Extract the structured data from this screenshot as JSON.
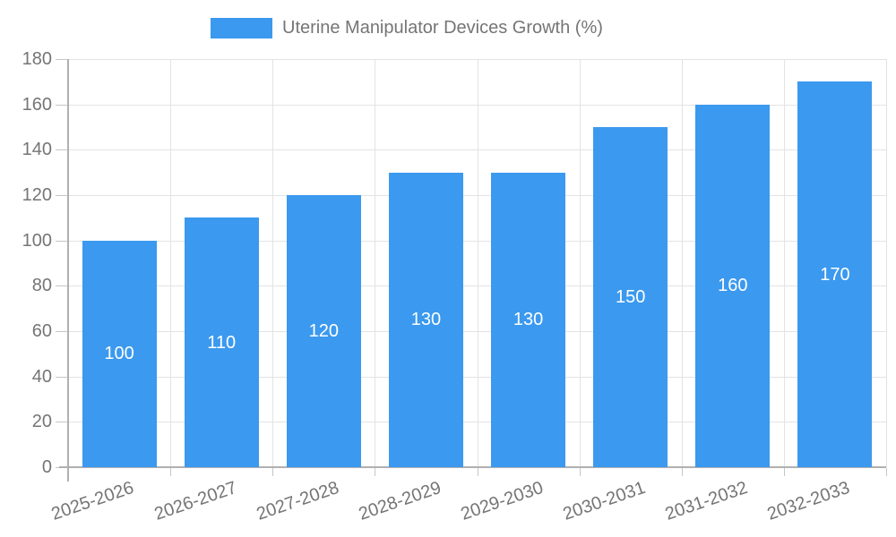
{
  "chart_data": {
    "type": "bar",
    "title": "",
    "legend": "Uterine Manipulator Devices Growth (%)",
    "categories": [
      "2025-2026",
      "2026-2027",
      "2027-2028",
      "2028-2029",
      "2029-2030",
      "2030-2031",
      "2031-2032",
      "2032-2033"
    ],
    "values": [
      100,
      110,
      120,
      130,
      130,
      150,
      160,
      170
    ],
    "value_labels": [
      "100",
      "110",
      "120",
      "130",
      "130",
      "150",
      "160",
      "170"
    ],
    "yticks": [
      0,
      20,
      40,
      60,
      80,
      100,
      120,
      140,
      160,
      180
    ],
    "ylim": [
      0,
      180
    ],
    "xlabel": "",
    "ylabel": "",
    "grid": true,
    "legend_position": "top-center",
    "value_label_position": "inside-center",
    "colors": {
      "bar": "#3b99ef",
      "value_label": "#ffffff",
      "axis_label": "#757575",
      "axis_line": "#b0b0b0",
      "gridline": "#e3e3e3",
      "tick": "#c6c6c6",
      "background": "#ffffff"
    }
  }
}
